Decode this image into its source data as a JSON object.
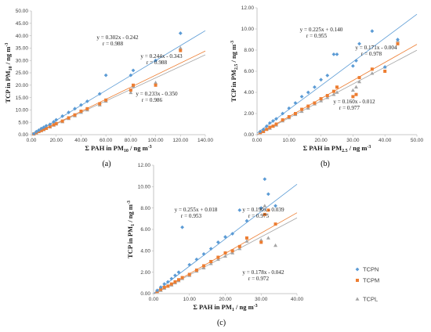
{
  "chart_data": [
    {
      "type": "scatter",
      "panel_label": "(a)",
      "xlabel": "Σ PAH in PM10 / ng m-3",
      "ylabel": "TCP in PM10 / ng m-3",
      "xlabel_parts": {
        "pre": "Σ PAH in PM",
        "sub": "10",
        "post": " / ng m",
        "sup": "-3"
      },
      "ylabel_parts": {
        "pre": "TCP in PM",
        "sub": "10",
        "post": " / ng m",
        "sup": "-3"
      },
      "xlim": [
        0,
        140
      ],
      "ylim": [
        0,
        50
      ],
      "xticks": [
        "0.00",
        "20.00",
        "40.00",
        "60.00",
        "80.00",
        "100.00",
        "120.00",
        "140.00"
      ],
      "yticks": [
        "0.00",
        "5.00",
        "10.00",
        "15.00",
        "20.00",
        "25.00",
        "30.00",
        "35.00",
        "40.00",
        "45.00",
        "50.00"
      ],
      "series": [
        {
          "name": "TCPN",
          "color": "#5b9bd5",
          "slope": 0.302,
          "intercept": -0.242,
          "equation": "y = 0.302x - 0.242",
          "r": "r = 0.988",
          "x": [
            2,
            4,
            6,
            8,
            10,
            12,
            15,
            18,
            20,
            25,
            30,
            35,
            40,
            45,
            55,
            60,
            80,
            82,
            100,
            120
          ],
          "y": [
            0.4,
            1.2,
            1.8,
            2.5,
            3.0,
            3.6,
            4.2,
            5.2,
            6.0,
            7.5,
            9.0,
            10.5,
            12.0,
            13.5,
            16.5,
            24.0,
            24.0,
            26.0,
            30.0,
            41.0
          ]
        },
        {
          "name": "TCPM",
          "color": "#ed7d31",
          "slope": 0.244,
          "intercept": -0.343,
          "equation": "y = 0.244x - 0.343",
          "r": "r = 0.988",
          "x": [
            2,
            4,
            6,
            8,
            10,
            12,
            15,
            18,
            20,
            25,
            30,
            35,
            40,
            45,
            55,
            60,
            80,
            82,
            100,
            120
          ],
          "y": [
            0.3,
            0.8,
            1.3,
            1.7,
            2.2,
            2.6,
            3.3,
            4.0,
            4.5,
            5.5,
            6.8,
            8.0,
            9.5,
            10.5,
            12.5,
            14.0,
            18.0,
            20.0,
            20.0,
            34.0
          ]
        },
        {
          "name": "TCPL",
          "color": "#a5a5a5",
          "slope": 0.233,
          "intercept": -0.35,
          "equation": "y = 0.233x - 0.350",
          "r": "r = 0.986",
          "x": [
            2,
            4,
            6,
            8,
            10,
            12,
            15,
            18,
            20,
            25,
            30,
            35,
            40,
            45,
            55,
            60,
            80,
            82,
            100,
            120
          ],
          "y": [
            0.3,
            0.7,
            1.2,
            1.6,
            2.0,
            2.5,
            3.1,
            3.8,
            4.3,
            5.2,
            6.5,
            7.6,
            9.0,
            10.0,
            12.0,
            13.5,
            17.0,
            19.5,
            21.0,
            35.0
          ]
        }
      ]
    },
    {
      "type": "scatter",
      "panel_label": "(b)",
      "xlabel": "Σ PAH in PM2.5 / ng m-3",
      "ylabel": "TCP in PM2.5 / ng m-3",
      "xlabel_parts": {
        "pre": "Σ PAH in PM",
        "sub": "2.5",
        "post": " / ng m",
        "sup": "-3"
      },
      "ylabel_parts": {
        "pre": "TCP in PM",
        "sub": "2.5",
        "post": " / ng m",
        "sup": "-3"
      },
      "xlim": [
        0,
        50
      ],
      "ylim": [
        0,
        12
      ],
      "xticks": [
        "0.00",
        "10.00",
        "20.00",
        "30.00",
        "40.00",
        "50.00"
      ],
      "yticks": [
        "0.00",
        "2.00",
        "4.00",
        "6.00",
        "8.00",
        "10.00",
        "12.00"
      ],
      "series": [
        {
          "name": "TCPN",
          "color": "#5b9bd5",
          "slope": 0.225,
          "intercept": 0.14,
          "equation": "y = 0.225x + 0.140",
          "r": "r = 0.955",
          "x": [
            1,
            2,
            3,
            4,
            5,
            6,
            8,
            10,
            12,
            14,
            16,
            18,
            20,
            22,
            24,
            25,
            30,
            31,
            32,
            36,
            40,
            44
          ],
          "y": [
            0.3,
            0.5,
            0.8,
            1.1,
            1.3,
            1.5,
            2.0,
            2.5,
            3.0,
            3.6,
            4.0,
            4.5,
            5.2,
            5.6,
            7.6,
            7.6,
            6.5,
            7.0,
            8.6,
            9.8,
            6.4,
            9.0
          ]
        },
        {
          "name": "TCPM",
          "color": "#ed7d31",
          "slope": 0.171,
          "intercept": -0.004,
          "equation": "y = 0.171x - 0.004",
          "r": "r = 0.978",
          "x": [
            1,
            2,
            3,
            4,
            5,
            6,
            8,
            10,
            12,
            14,
            16,
            18,
            20,
            22,
            24,
            25,
            30,
            31,
            32,
            36,
            40,
            44
          ],
          "y": [
            0.2,
            0.3,
            0.5,
            0.7,
            0.8,
            1.0,
            1.4,
            1.7,
            2.0,
            2.4,
            2.7,
            3.0,
            3.4,
            3.7,
            4.1,
            4.5,
            3.6,
            3.8,
            5.4,
            6.2,
            6.0,
            8.6
          ]
        },
        {
          "name": "TCPL",
          "color": "#a5a5a5",
          "slope": 0.16,
          "intercept": -0.012,
          "equation": "y = 0.160x - 0.012",
          "r": "r = 0.977",
          "x": [
            1,
            2,
            3,
            4,
            5,
            6,
            8,
            10,
            12,
            14,
            16,
            18,
            20,
            22,
            24,
            25,
            30,
            31,
            32,
            36,
            40,
            44
          ],
          "y": [
            0.2,
            0.3,
            0.5,
            0.6,
            0.8,
            0.9,
            1.3,
            1.6,
            1.9,
            2.2,
            2.5,
            2.9,
            3.2,
            3.5,
            3.8,
            4.0,
            4.2,
            4.5,
            5.0,
            5.8,
            6.4,
            8.9
          ]
        }
      ]
    },
    {
      "type": "scatter",
      "panel_label": "(c)",
      "xlabel": "Σ PAH in PM1 / ng m-3",
      "ylabel": "TCP in PM1 / ng m-3",
      "xlabel_parts": {
        "pre": "Σ PAH in PM",
        "sub": "1",
        "post": " / ng m",
        "sup": "-3"
      },
      "ylabel_parts": {
        "pre": "TCP in PM",
        "sub": "1",
        "post": " / ng m",
        "sup": "-3"
      },
      "xlim": [
        0,
        40
      ],
      "ylim": [
        0,
        12
      ],
      "xticks": [
        "0.00",
        "10.00",
        "20.00",
        "30.00",
        "40.00"
      ],
      "yticks": [
        "0.00",
        "2.00",
        "4.00",
        "6.00",
        "8.00",
        "10.00",
        "12.00"
      ],
      "legend": {
        "position": "right",
        "entries": [
          "TCPN",
          "TCPM",
          "TCPL"
        ]
      },
      "series": [
        {
          "name": "TCPN",
          "color": "#5b9bd5",
          "slope": 0.255,
          "intercept": 0.018,
          "equation": "y = 0.255x + 0.018",
          "r": "r = 0.953",
          "x": [
            1,
            2,
            3,
            4,
            5,
            6,
            7,
            8,
            10,
            12,
            14,
            16,
            18,
            20,
            22,
            24,
            26,
            30,
            31,
            32,
            34
          ],
          "y": [
            0.3,
            0.6,
            0.9,
            1.1,
            1.4,
            1.7,
            2.0,
            6.2,
            2.7,
            3.2,
            3.7,
            4.2,
            4.8,
            5.3,
            5.6,
            7.8,
            6.8,
            8.0,
            10.7,
            9.3,
            8.2
          ]
        },
        {
          "name": "TCPM",
          "color": "#ed7d31",
          "slope": 0.19,
          "intercept": -0.039,
          "equation": "y = 0.190x - 0.039",
          "r": "r = 0.975",
          "x": [
            1,
            2,
            3,
            4,
            5,
            6,
            7,
            8,
            10,
            12,
            14,
            16,
            18,
            20,
            22,
            24,
            26,
            30,
            31,
            32,
            34
          ],
          "y": [
            0.2,
            0.4,
            0.6,
            0.7,
            0.9,
            1.1,
            1.3,
            1.5,
            1.8,
            2.2,
            2.6,
            3.0,
            3.4,
            3.8,
            4.0,
            4.4,
            5.2,
            4.8,
            7.4,
            7.8,
            6.5
          ]
        },
        {
          "name": "TCPL",
          "color": "#a5a5a5",
          "slope": 0.178,
          "intercept": -0.042,
          "equation": "y = 0.178x - 0.042",
          "r": "r = 0.972",
          "x": [
            1,
            2,
            3,
            4,
            5,
            6,
            7,
            8,
            10,
            12,
            14,
            16,
            18,
            20,
            22,
            24,
            26,
            30,
            31,
            32,
            34
          ],
          "y": [
            0.2,
            0.3,
            0.5,
            0.7,
            0.8,
            1.0,
            1.2,
            1.4,
            1.7,
            2.1,
            2.4,
            2.8,
            3.2,
            3.5,
            3.8,
            4.2,
            4.9,
            5.0,
            8.2,
            5.2,
            4.5
          ]
        }
      ]
    }
  ]
}
